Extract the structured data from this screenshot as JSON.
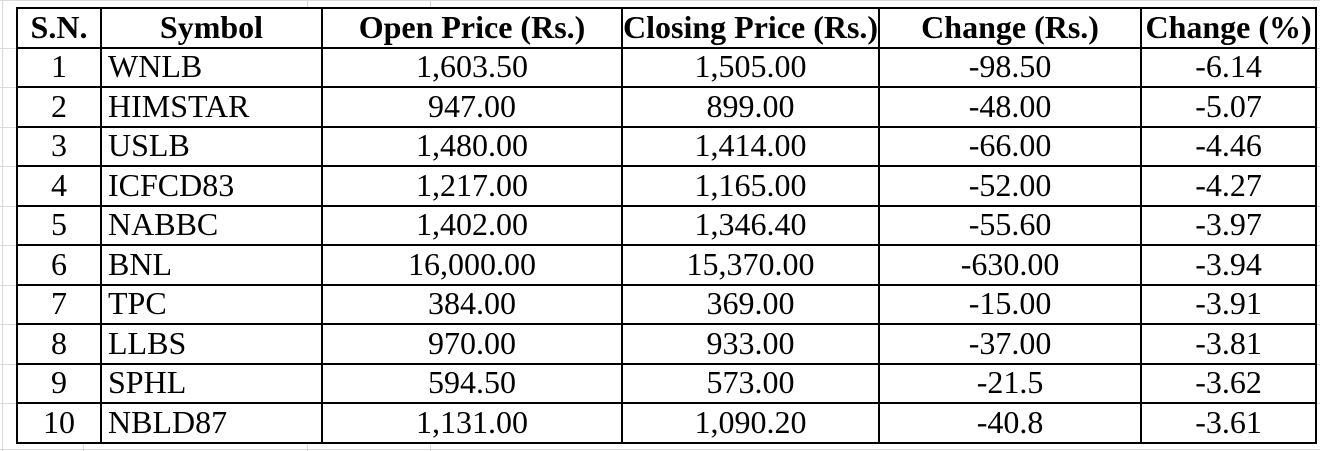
{
  "colors": {
    "text": "#000000",
    "table_border": "#000000",
    "background": "#ffffff",
    "spreadsheet_gridline": "#d9d9d9"
  },
  "table": {
    "headers": [
      "S.N.",
      "Symbol",
      "Open Price (Rs.)",
      "Closing Price (Rs.)",
      "Change (Rs.)",
      "Change (%)"
    ],
    "rows": [
      [
        "1",
        "WNLB",
        "1,603.50",
        "1,505.00",
        "-98.50",
        "-6.14"
      ],
      [
        "2",
        "HIMSTAR",
        "947.00",
        "899.00",
        "-48.00",
        "-5.07"
      ],
      [
        "3",
        "USLB",
        "1,480.00",
        "1,414.00",
        "-66.00",
        "-4.46"
      ],
      [
        "4",
        "ICFCD83",
        "1,217.00",
        "1,165.00",
        "-52.00",
        "-4.27"
      ],
      [
        "5",
        "NABBC",
        "1,402.00",
        "1,346.40",
        "-55.60",
        "-3.97"
      ],
      [
        "6",
        "BNL",
        "16,000.00",
        "15,370.00",
        "-630.00",
        "-3.94"
      ],
      [
        "7",
        "TPC",
        "384.00",
        "369.00",
        "-15.00",
        "-3.91"
      ],
      [
        "8",
        "LLBS",
        "970.00",
        "933.00",
        "-37.00",
        "-3.81"
      ],
      [
        "9",
        "SPHL",
        "594.50",
        "573.00",
        "-21.5",
        "-3.62"
      ],
      [
        "10",
        "NBLD87",
        "1,131.00",
        "1,090.20",
        "-40.8",
        "-3.61"
      ]
    ]
  }
}
